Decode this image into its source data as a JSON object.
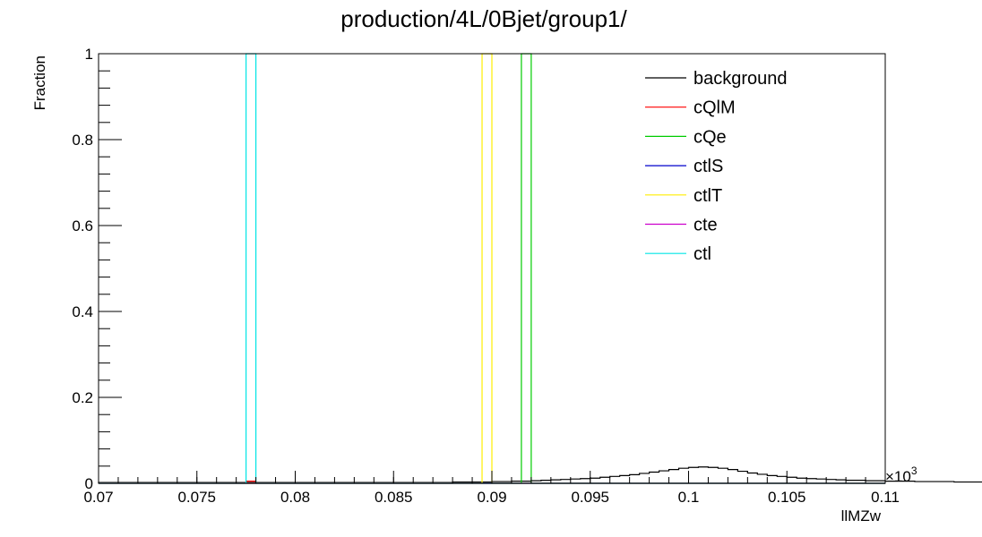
{
  "chart_data": {
    "type": "line",
    "title": "production/4L/0Bjet/group1/",
    "xlabel": "llMZw",
    "ylabel": "Fraction",
    "x_exponent_label": "×10",
    "x_exponent_power": "3",
    "xlim": [
      0.07,
      0.11
    ],
    "ylim": [
      0,
      1
    ],
    "x_ticks": [
      "0.07",
      "0.075",
      "0.08",
      "0.085",
      "0.09",
      "0.095",
      "0.1",
      "0.105",
      "0.11"
    ],
    "x_tick_values": [
      0.07,
      0.075,
      0.08,
      0.085,
      0.09,
      0.095,
      0.1,
      0.105,
      0.11
    ],
    "y_ticks": [
      "0",
      "0.2",
      "0.4",
      "0.6",
      "0.8",
      "1"
    ],
    "y_tick_values": [
      0,
      0.2,
      0.4,
      0.6,
      0.8,
      1
    ],
    "grid": false,
    "legend_position": "top-right",
    "series": [
      {
        "name": "background",
        "color": "#000000",
        "bin_width": 0.0005,
        "bins_start": 0.07,
        "values": [
          0.002,
          0.002,
          0.002,
          0.002,
          0.002,
          0.002,
          0.002,
          0.002,
          0.002,
          0.002,
          0.002,
          0.002,
          0.002,
          0.002,
          0.002,
          0.002,
          0.002,
          0.002,
          0.002,
          0.002,
          0.002,
          0.002,
          0.002,
          0.002,
          0.002,
          0.002,
          0.002,
          0.002,
          0.002,
          0.002,
          0.002,
          0.002,
          0.002,
          0.002,
          0.002,
          0.002,
          0.003,
          0.003,
          0.003,
          0.003,
          0.004,
          0.004,
          0.005,
          0.005,
          0.006,
          0.007,
          0.008,
          0.009,
          0.01,
          0.011,
          0.012,
          0.014,
          0.016,
          0.018,
          0.02,
          0.023,
          0.026,
          0.029,
          0.032,
          0.035,
          0.037,
          0.038,
          0.037,
          0.035,
          0.032,
          0.028,
          0.024,
          0.021,
          0.018,
          0.016,
          0.014,
          0.012,
          0.011,
          0.01,
          0.009,
          0.008,
          0.007,
          0.007,
          0.006,
          0.006,
          0.005,
          0.005,
          0.005,
          0.004,
          0.004,
          0.004,
          0.004,
          0.003,
          0.003,
          0.003,
          0.003,
          0.003,
          0.003,
          0.002,
          0.002,
          0.002,
          0.002,
          0.002,
          0.002,
          0.002,
          0.002,
          0.002,
          0.002,
          0.002,
          0.002,
          0.002,
          0.002,
          0.002,
          0.002,
          0.002,
          0.002,
          0.002,
          0.002,
          0.002,
          0.002,
          0.002,
          0.002,
          0.002,
          0.002,
          0.002
        ]
      },
      {
        "name": "cQlM",
        "color": "#ff0000",
        "peak_low": 0.0775,
        "peak_high": 0.078,
        "peak_value": 0.005
      },
      {
        "name": "cQe",
        "color": "#00cc00",
        "peak_low": 0.0915,
        "peak_high": 0.092,
        "peak_value": 1
      },
      {
        "name": "ctlS",
        "color": "#0000cc",
        "peak_low": 0.0775,
        "peak_high": 0.078,
        "peak_value": 0
      },
      {
        "name": "ctlT",
        "color": "#ffee00",
        "peak_low": 0.0895,
        "peak_high": 0.09,
        "peak_value": 1
      },
      {
        "name": "cte",
        "color": "#cc00cc",
        "peak_low": 0.0775,
        "peak_high": 0.078,
        "peak_value": 0
      },
      {
        "name": "ctl",
        "color": "#00e5e5",
        "peak_low": 0.0775,
        "peak_high": 0.078,
        "peak_value": 1
      }
    ]
  }
}
